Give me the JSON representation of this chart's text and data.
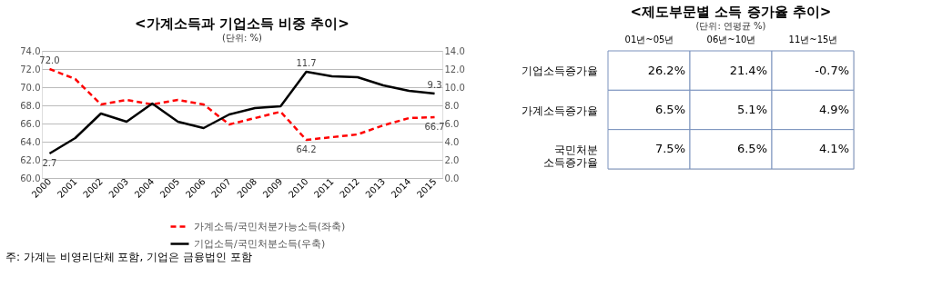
{
  "chart_data": [
    {
      "type": "line",
      "title": "<가계소득과 기업소득 비중 추이>",
      "subtitle": "(단위: %)",
      "categories": [
        "2000",
        "2001",
        "2002",
        "2003",
        "2004",
        "2005",
        "2006",
        "2007",
        "2008",
        "2009",
        "2010",
        "2011",
        "2012",
        "2013",
        "2014",
        "2015"
      ],
      "series": [
        {
          "name": "가계소득/국민처분가능소득(좌축)",
          "color": "#ff0000",
          "line_style": "dashed",
          "values": [
            72.0,
            70.9,
            68.1,
            68.6,
            68.1,
            68.6,
            68.1,
            65.9,
            66.6,
            67.3,
            64.2,
            64.5,
            64.8,
            65.8,
            66.6,
            66.7
          ],
          "value_labels": [
            "72.0",
            null,
            null,
            null,
            null,
            null,
            null,
            null,
            null,
            null,
            "64.2",
            null,
            null,
            null,
            null,
            "66.7"
          ]
        },
        {
          "name": "기업소득/국민처분소득(우축)",
          "color": "#000000",
          "line_style": "solid",
          "axis": "y2",
          "values": [
            2.7,
            4.4,
            7.1,
            6.2,
            8.2,
            6.2,
            5.5,
            7.0,
            7.7,
            7.9,
            11.7,
            11.2,
            11.1,
            10.2,
            9.6,
            9.3
          ],
          "value_labels": [
            "2.7",
            null,
            null,
            null,
            null,
            null,
            null,
            null,
            null,
            null,
            "11.7",
            null,
            null,
            null,
            null,
            "9.3"
          ]
        }
      ],
      "ylim": [
        60,
        74
      ],
      "yticks": [
        {
          "value": 60,
          "label": "60.0"
        },
        {
          "value": 62,
          "label": "62.0"
        },
        {
          "value": 64,
          "label": "64.0"
        },
        {
          "value": 66,
          "label": "66.0"
        },
        {
          "value": 68,
          "label": "68.0"
        },
        {
          "value": 70,
          "label": "70.0"
        },
        {
          "value": 72,
          "label": "72.0"
        },
        {
          "value": 74,
          "label": "74.0"
        }
      ],
      "y2lim": [
        0,
        14
      ],
      "y2ticks": [
        {
          "value": 0,
          "label": "0.0"
        },
        {
          "value": 2,
          "label": "2.0"
        },
        {
          "value": 4,
          "label": "4.0"
        },
        {
          "value": 6,
          "label": "6.0"
        },
        {
          "value": 8,
          "label": "8.0"
        },
        {
          "value": 10,
          "label": "10.0"
        },
        {
          "value": 12,
          "label": "12.0"
        },
        {
          "value": 14,
          "label": "14.0"
        }
      ],
      "grid": "y",
      "legend": "bottom",
      "annotations": [
        "주: 가계는 비영리단체 포함, 기업은 금융법인 포함"
      ]
    },
    {
      "type": "other",
      "title": "<제도부문별 소득 증가율 추이>",
      "subtitle": "(단위: 연평균 %)",
      "categories": [
        "01년~05년",
        "06년~10년",
        "11년~15년"
      ],
      "y_categories": [
        "기업소득증가율",
        "가계소득증가율",
        "국민처분 소득증가율"
      ],
      "cell_labels": [
        [
          "26.2%",
          "21.4%",
          "-0.7%"
        ],
        [
          "6.5%",
          "5.1%",
          "4.9%"
        ],
        [
          "7.5%",
          "6.5%",
          "4.1%"
        ]
      ]
    }
  ]
}
